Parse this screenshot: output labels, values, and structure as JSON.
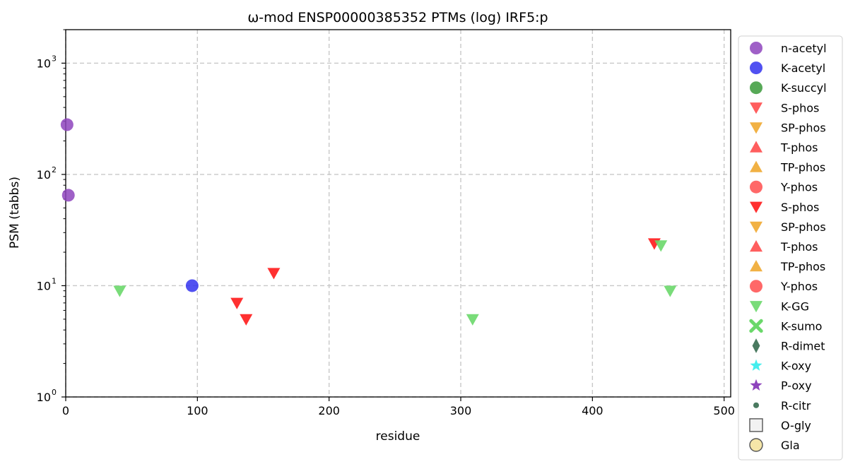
{
  "chart_data": {
    "type": "scatter",
    "title": "ω-mod ENSP00000385352 PTMs (log) IRF5:p",
    "xlabel": "residue",
    "ylabel": "PSM (tabbs)",
    "xlim": [
      0,
      505
    ],
    "ylim": [
      1,
      2000
    ],
    "yscale": "log",
    "grid": true,
    "legend_position": "right-outside",
    "x_ticks": [
      0,
      100,
      200,
      300,
      400,
      500
    ],
    "y_ticks": [
      {
        "value": 1,
        "base": "10",
        "exp": "0"
      },
      {
        "value": 10,
        "base": "10",
        "exp": "1"
      },
      {
        "value": 100,
        "base": "10",
        "exp": "2"
      },
      {
        "value": 1000,
        "base": "10",
        "exp": "3"
      }
    ],
    "series": [
      {
        "name": "n-acetyl",
        "marker": "circle",
        "color": "#8e44bd",
        "points": [
          {
            "x": 1,
            "y": 280
          },
          {
            "x": 2,
            "y": 65
          }
        ]
      },
      {
        "name": "K-acetyl",
        "marker": "circle",
        "color": "#3333ee",
        "points": [
          {
            "x": 96,
            "y": 10
          }
        ]
      },
      {
        "name": "K-succyl",
        "marker": "circle",
        "color": "#3a9a3a",
        "points": []
      },
      {
        "name": "S-phos",
        "marker": "triangle-down",
        "color": "#ff4d4d",
        "points": []
      },
      {
        "name": "SP-phos",
        "marker": "triangle-down",
        "color": "#f0a830",
        "points": []
      },
      {
        "name": "T-phos",
        "marker": "triangle-up",
        "color": "#ff4d4d",
        "points": []
      },
      {
        "name": "TP-phos",
        "marker": "triangle-up",
        "color": "#f0a830",
        "points": []
      },
      {
        "name": "Y-phos",
        "marker": "circle",
        "color": "#ff4d4d",
        "points": []
      },
      {
        "name": "S-phos",
        "marker": "triangle-down",
        "color": "#ff1a1a",
        "points": [
          {
            "x": 130,
            "y": 7
          },
          {
            "x": 137,
            "y": 5
          },
          {
            "x": 158,
            "y": 13
          },
          {
            "x": 447,
            "y": 24
          }
        ]
      },
      {
        "name": "SP-phos",
        "marker": "triangle-down",
        "color": "#f0a830",
        "points": []
      },
      {
        "name": "T-phos",
        "marker": "triangle-up",
        "color": "#ff4d4d",
        "points": []
      },
      {
        "name": "TP-phos",
        "marker": "triangle-up",
        "color": "#f0a830",
        "points": []
      },
      {
        "name": "Y-phos",
        "marker": "circle",
        "color": "#ff4d4d",
        "points": []
      },
      {
        "name": "K-GG",
        "marker": "triangle-down",
        "color": "#6ad86a",
        "points": [
          {
            "x": 41,
            "y": 9
          },
          {
            "x": 309,
            "y": 5
          },
          {
            "x": 452,
            "y": 23
          },
          {
            "x": 459,
            "y": 9
          }
        ]
      },
      {
        "name": "K-sumo",
        "marker": "x-thick",
        "color": "#6ad86a",
        "points": []
      },
      {
        "name": "R-dimet",
        "marker": "diamond",
        "color": "#4a7a60",
        "points": []
      },
      {
        "name": "K-oxy",
        "marker": "star",
        "color": "#44eeee",
        "points": []
      },
      {
        "name": "P-oxy",
        "marker": "star",
        "color": "#8e44bd",
        "points": []
      },
      {
        "name": "R-citr",
        "marker": "small-circle",
        "color": "#4a7a60",
        "points": []
      },
      {
        "name": "O-gly",
        "marker": "square-open",
        "color": "#555555",
        "points": []
      },
      {
        "name": "Gla",
        "marker": "circle-open",
        "color": "#555555",
        "points": []
      }
    ]
  }
}
